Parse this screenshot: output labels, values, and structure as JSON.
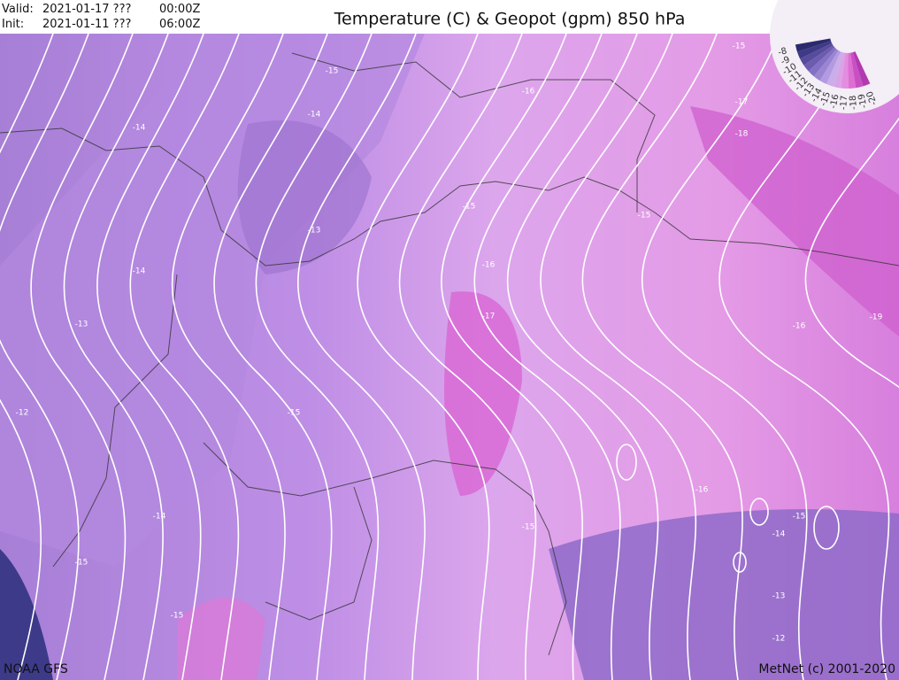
{
  "header": {
    "valid_label": "Valid:",
    "valid_date": "2021-01-17 ???",
    "valid_time": "00:00Z",
    "init_label": "Init:",
    "init_date": "2021-01-11 ???",
    "init_time": "06:00Z",
    "title": "Temperature (C) & Geopot (gpm) 850 hPa"
  },
  "legend": {
    "labels": [
      "-8",
      "-9",
      "-10",
      "-11",
      "-12",
      "-13",
      "-14",
      "-15",
      "-16",
      "-17",
      "-18",
      "-19",
      "-20"
    ]
  },
  "map": {
    "contour_labels": [
      "-15",
      "-15",
      "-16",
      "-17",
      "-14",
      "-14",
      "-18",
      "-15",
      "-15",
      "-13",
      "-16",
      "-14",
      "-19",
      "-17",
      "-16",
      "-13",
      "-12",
      "-15",
      "-16",
      "-14",
      "-15",
      "-15",
      "-14",
      "-15",
      "-15",
      "-13",
      "-12"
    ]
  },
  "footer": {
    "source": "NOAA GFS",
    "credit": "MetNet (c) 2001-2020"
  }
}
